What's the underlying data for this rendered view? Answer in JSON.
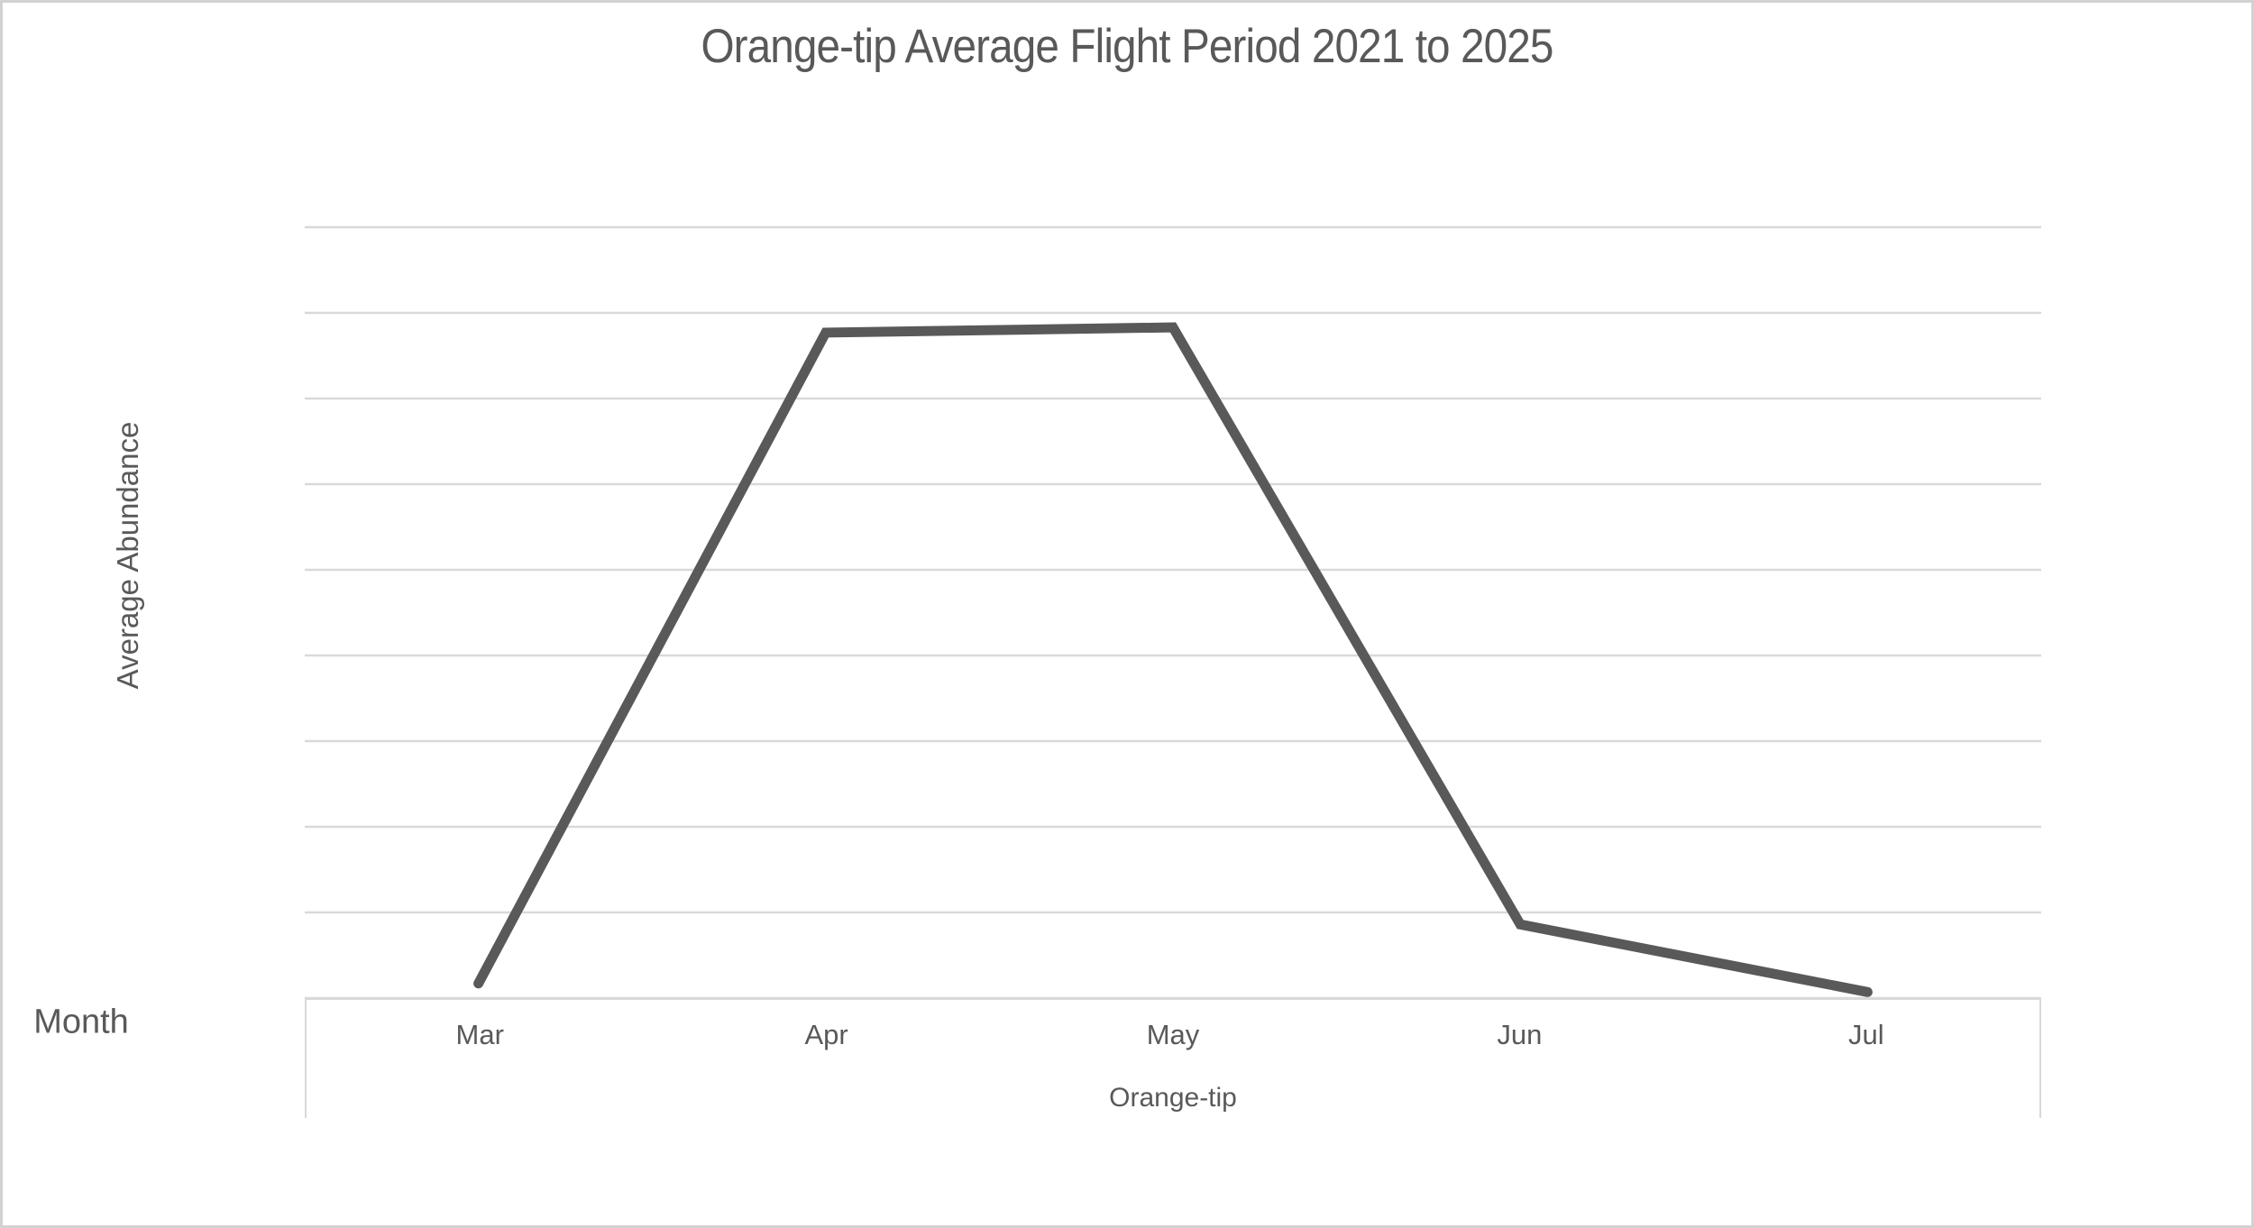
{
  "page": {
    "background": "#ffffff",
    "border_color": "#d2d2d2"
  },
  "chart_data": {
    "type": "line",
    "title": "Orange-tip Average Flight Period 2021 to 2025",
    "ylabel": "Average Abundance",
    "x_axis_left_label": "Month",
    "x_axis_title": "Orange-tip",
    "categories": [
      "Mar",
      "Apr",
      "May",
      "Jun",
      "Jul"
    ],
    "series": [
      {
        "name": "Orange-tip",
        "values": [
          0.17,
          7.77,
          7.83,
          0.86,
          0.07
        ]
      }
    ],
    "ylim": [
      0,
      9
    ],
    "y_tick_labels_visible": false,
    "gridlines": "horizontal",
    "gridline_count": 10,
    "legend": "none",
    "colors": {
      "line": "#595959",
      "gridline": "#d9d9d9",
      "text": "#595959",
      "axis_band_border": "#d9d9d9"
    }
  }
}
